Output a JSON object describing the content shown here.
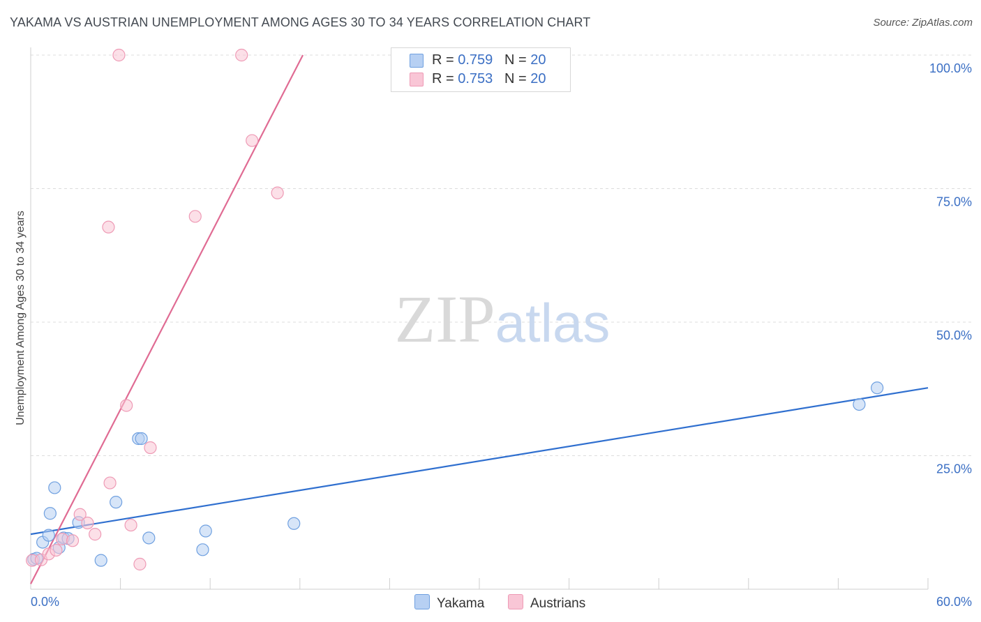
{
  "chart_data": {
    "type": "scatter",
    "title": "YAKAMA VS AUSTRIAN UNEMPLOYMENT AMONG AGES 30 TO 34 YEARS CORRELATION CHART",
    "source": "Source: ZipAtlas.com",
    "xlabel": "",
    "ylabel": "Unemployment Among Ages 30 to 34 years",
    "xlim": [
      0,
      60
    ],
    "ylim": [
      0,
      100
    ],
    "x_tick_labels": [
      "0.0%",
      "60.0%"
    ],
    "y_ticks": [
      25,
      50,
      75,
      100
    ],
    "y_tick_labels": [
      "25.0%",
      "50.0%",
      "75.0%",
      "100.0%"
    ],
    "grid": true,
    "watermark": "ZIPatlas",
    "legend_position": "top-center",
    "series": [
      {
        "name": "Yakama",
        "color": "#6fa0e0",
        "fill": "#b7d0f3",
        "line_color": "#2f6fcf",
        "r_label": "R =",
        "r_value": "0.759",
        "n_label": "N =",
        "n_value": "20",
        "trend": [
          [
            0,
            10.3
          ],
          [
            60,
            37.7
          ]
        ],
        "points": [
          [
            0.2,
            5.6
          ],
          [
            0.8,
            8.8
          ],
          [
            1.2,
            10.1
          ],
          [
            1.3,
            14.2
          ],
          [
            1.6,
            19.0
          ],
          [
            1.9,
            7.8
          ],
          [
            2.2,
            9.6
          ],
          [
            2.5,
            9.5
          ],
          [
            3.2,
            12.5
          ],
          [
            4.7,
            5.4
          ],
          [
            5.7,
            16.3
          ],
          [
            7.2,
            28.2
          ],
          [
            7.4,
            28.2
          ],
          [
            7.9,
            9.6
          ],
          [
            11.5,
            7.4
          ],
          [
            11.7,
            10.9
          ],
          [
            17.6,
            12.3
          ],
          [
            55.4,
            34.6
          ],
          [
            56.6,
            37.7
          ],
          [
            0.4,
            5.8
          ]
        ]
      },
      {
        "name": "Austrians",
        "color": "#ee9ab5",
        "fill": "#f9c6d6",
        "line_color": "#e06b93",
        "r_label": "R =",
        "r_value": "0.753",
        "n_label": "N =",
        "n_value": "20",
        "trend": [
          [
            0,
            1.0
          ],
          [
            18.2,
            100
          ]
        ],
        "points": [
          [
            0.1,
            5.4
          ],
          [
            0.7,
            5.5
          ],
          [
            1.2,
            6.6
          ],
          [
            1.7,
            7.3
          ],
          [
            2.1,
            9.4
          ],
          [
            2.8,
            9.1
          ],
          [
            3.3,
            14.0
          ],
          [
            3.8,
            12.4
          ],
          [
            4.3,
            10.3
          ],
          [
            5.2,
            67.8
          ],
          [
            5.3,
            19.9
          ],
          [
            5.9,
            100.0
          ],
          [
            6.4,
            34.4
          ],
          [
            6.7,
            12.0
          ],
          [
            7.3,
            4.7
          ],
          [
            8.0,
            26.5
          ],
          [
            11.0,
            69.8
          ],
          [
            14.1,
            100.0
          ],
          [
            14.8,
            84.0
          ],
          [
            16.5,
            74.2
          ]
        ]
      }
    ]
  }
}
